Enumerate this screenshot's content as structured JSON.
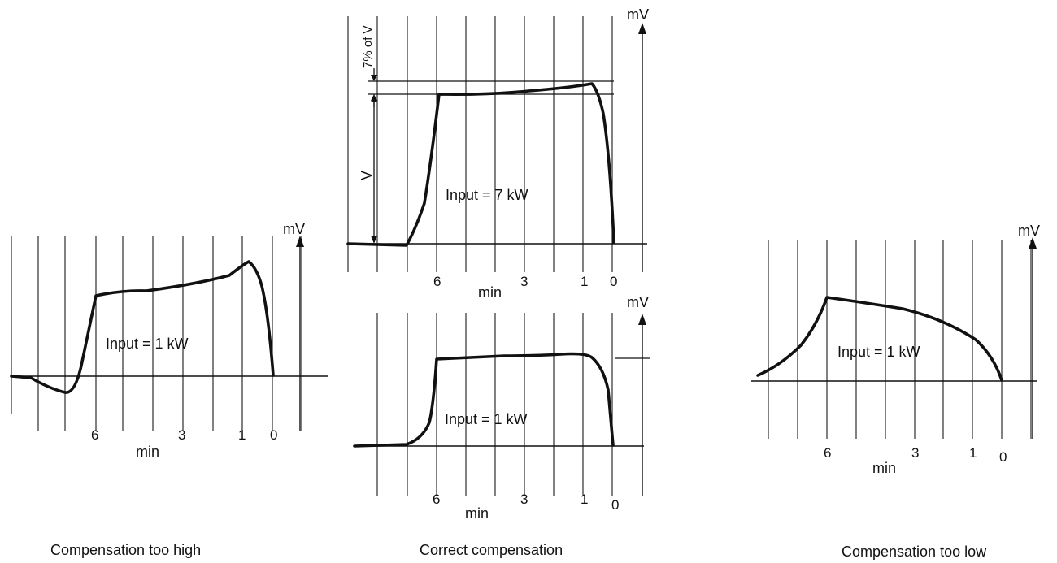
{
  "panels": [
    {
      "name": "compensation-too-high",
      "caption": "Compensation too high",
      "input_label": "Input = 1 kW",
      "axis_unit": "mV",
      "time_unit": "min",
      "tick_labels": [
        "6",
        "3",
        "1",
        "0"
      ]
    },
    {
      "name": "correct-7kw",
      "caption": "Correct compensation",
      "input_label": "Input = 7 kW",
      "axis_unit": "mV",
      "time_unit": "min",
      "tick_labels": [
        "6",
        "3",
        "1",
        "0"
      ],
      "annot_v": "V",
      "annot_pct": "7% of V"
    },
    {
      "name": "correct-1kw",
      "input_label": "Input = 1 kW",
      "axis_unit": "mV",
      "time_unit": "min",
      "tick_labels": [
        "6",
        "3",
        "1",
        "0"
      ]
    },
    {
      "name": "compensation-too-low",
      "caption": "Compensation too low",
      "input_label": "Input = 1 kW",
      "axis_unit": "mV",
      "time_unit": "min",
      "tick_labels": [
        "6",
        "3",
        "1",
        "0"
      ]
    }
  ]
}
